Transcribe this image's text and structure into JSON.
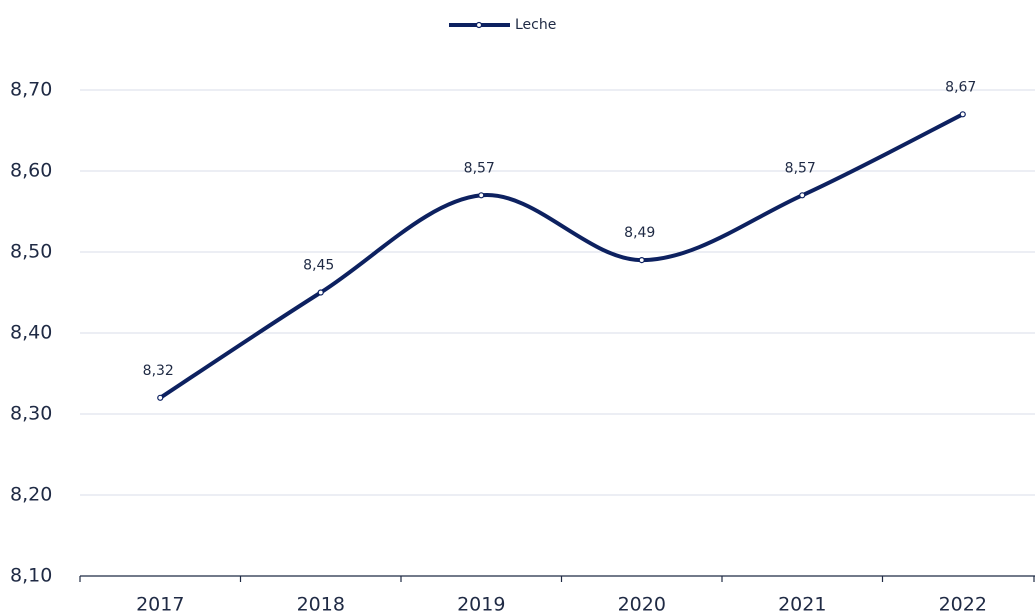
{
  "chart_data": {
    "type": "line",
    "categories": [
      "2017",
      "2018",
      "2019",
      "2020",
      "2021",
      "2022"
    ],
    "series": [
      {
        "name": "Leche",
        "color": "#0d2160",
        "values": [
          8.32,
          8.45,
          8.57,
          8.49,
          8.57,
          8.67
        ],
        "value_labels": [
          "8,32",
          "8,45",
          "8,57",
          "8,49",
          "8,57",
          "8,67"
        ]
      }
    ],
    "ylim": [
      8.1,
      8.7
    ],
    "yticks": [
      {
        "value": 8.1,
        "label": "8,10"
      },
      {
        "value": 8.2,
        "label": "8,20"
      },
      {
        "value": 8.3,
        "label": "8,30"
      },
      {
        "value": 8.4,
        "label": "8,40"
      },
      {
        "value": 8.5,
        "label": "8,50"
      },
      {
        "value": 8.6,
        "label": "8,60"
      },
      {
        "value": 8.7,
        "label": "8,70"
      }
    ],
    "grid": true,
    "legend": "top",
    "smooth": true
  }
}
